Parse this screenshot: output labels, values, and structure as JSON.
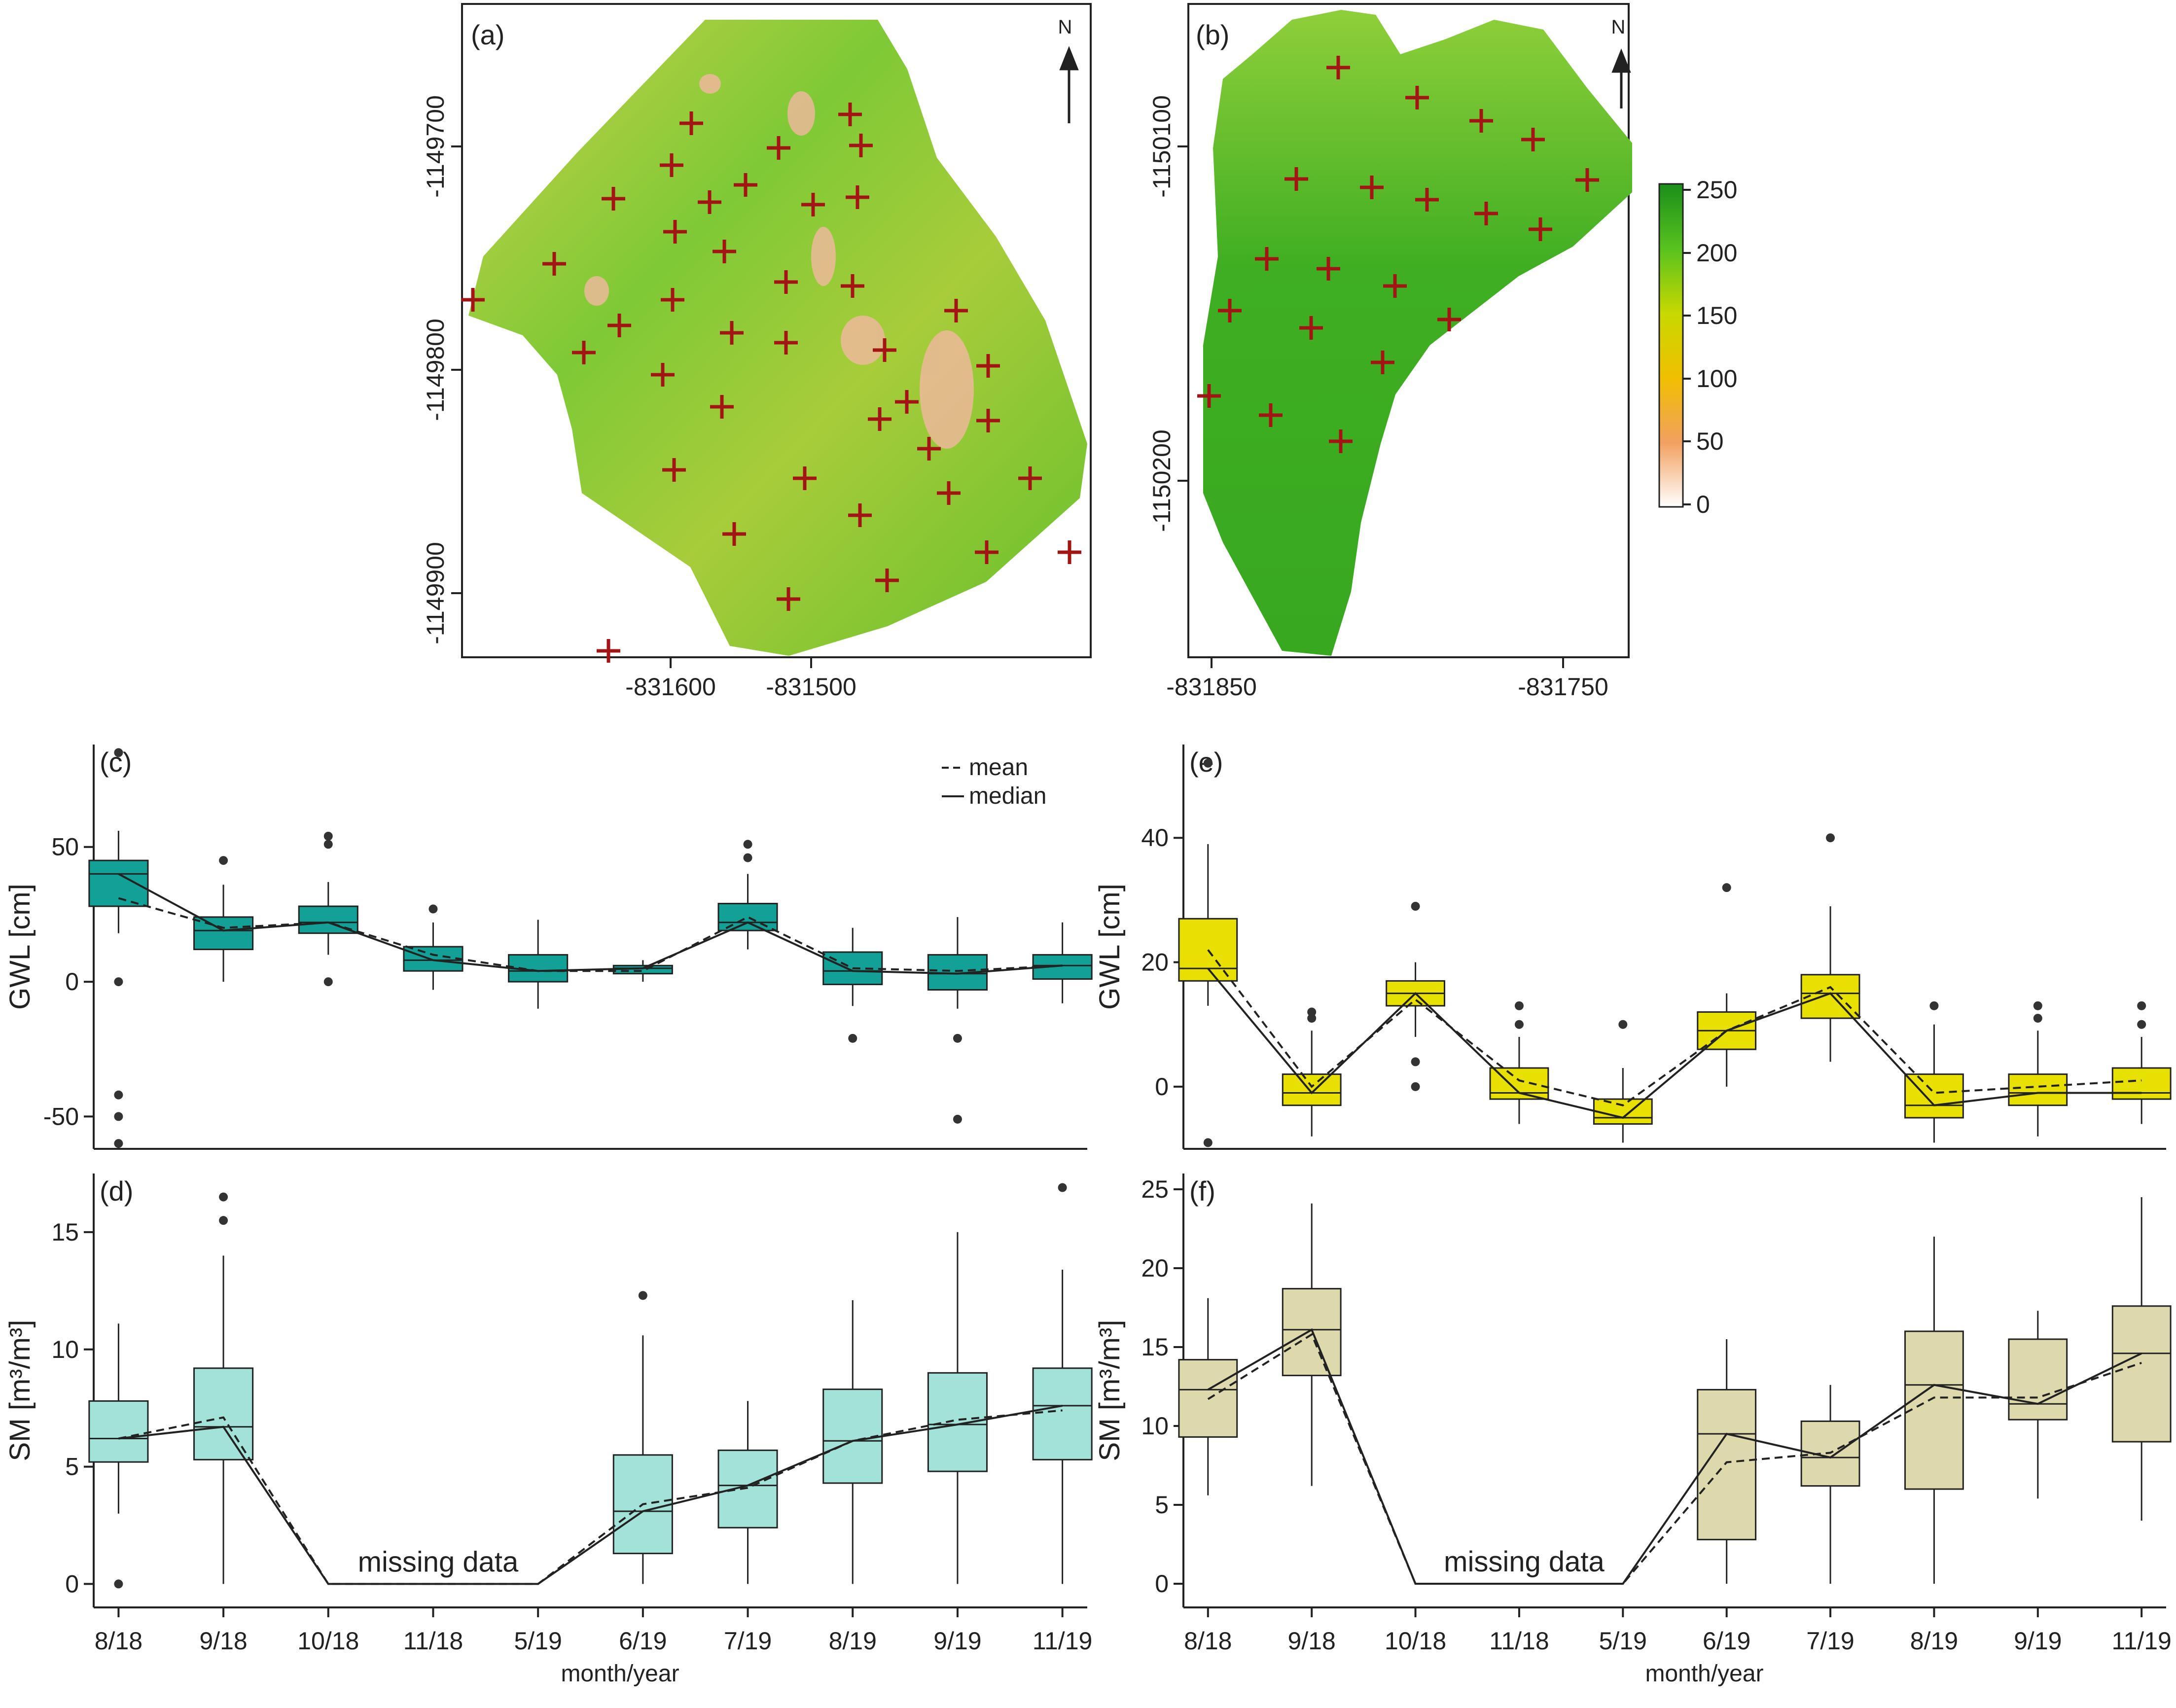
{
  "chart_data": [
    {
      "panel": "(a)",
      "type": "raster-map",
      "north_label": "N",
      "x_ticks": [
        "-831600",
        "-831500"
      ],
      "y_ticks": [
        "-1149700",
        "-1149800",
        "-1149900"
      ],
      "markers": "sampling points (+)"
    },
    {
      "panel": "(b)",
      "type": "raster-map",
      "north_label": "N",
      "x_ticks": [
        "-831850",
        "-831750"
      ],
      "y_ticks": [
        "-1150100",
        "-1150200"
      ],
      "colorbar": {
        "ticks": [
          "250",
          "200",
          "150",
          "100",
          "50",
          "0"
        ],
        "colors": [
          "#1a8f1a",
          "#58c21f",
          "#c8d800",
          "#f0c000",
          "#f2a060",
          "#ffffff"
        ]
      }
    },
    {
      "panel": "(c)",
      "type": "box",
      "ylabel": "GWL [cm]",
      "ylim": [
        -62,
        88
      ],
      "y_ticks": [
        -50,
        0,
        50
      ],
      "color": "#13a096",
      "legend": {
        "mean": "mean",
        "median": "median"
      },
      "categories": [
        "8/18",
        "9/18",
        "10/18",
        "11/18",
        "5/19",
        "6/19",
        "7/19",
        "8/19",
        "9/19",
        "11/19"
      ],
      "boxes": [
        {
          "q1": 28,
          "median": 40,
          "q3": 45,
          "lo": 18,
          "hi": 56,
          "mean": 31,
          "outliers": [
            85,
            0,
            -42,
            -50,
            -60
          ]
        },
        {
          "q1": 12,
          "median": 19,
          "q3": 24,
          "lo": 0,
          "hi": 36,
          "mean": 20,
          "outliers": [
            45
          ]
        },
        {
          "q1": 18,
          "median": 22,
          "q3": 28,
          "lo": 10,
          "hi": 37,
          "mean": 22,
          "outliers": [
            51,
            54,
            0
          ]
        },
        {
          "q1": 4,
          "median": 8,
          "q3": 13,
          "lo": -3,
          "hi": 22,
          "mean": 10,
          "outliers": [
            27
          ]
        },
        {
          "q1": 0,
          "median": 4,
          "q3": 10,
          "lo": -10,
          "hi": 23,
          "mean": 4,
          "outliers": []
        },
        {
          "q1": 3,
          "median": 5,
          "q3": 6,
          "lo": 0,
          "hi": 8,
          "mean": 4,
          "outliers": []
        },
        {
          "q1": 19,
          "median": 22,
          "q3": 29,
          "lo": 12,
          "hi": 40,
          "mean": 24,
          "outliers": [
            46,
            51
          ]
        },
        {
          "q1": -1,
          "median": 4,
          "q3": 11,
          "lo": -9,
          "hi": 20,
          "mean": 5,
          "outliers": [
            -21
          ]
        },
        {
          "q1": -3,
          "median": 3,
          "q3": 10,
          "lo": -10,
          "hi": 24,
          "mean": 4,
          "outliers": [
            -21,
            -51
          ]
        },
        {
          "q1": 1,
          "median": 6,
          "q3": 10,
          "lo": -8,
          "hi": 22,
          "mean": 6,
          "outliers": []
        }
      ]
    },
    {
      "panel": "(d)",
      "type": "box",
      "ylabel": "SM [m³/m³]",
      "ylim": [
        -1,
        17.5
      ],
      "y_ticks": [
        0,
        5,
        10,
        15
      ],
      "color": "#a2e2d8",
      "annotation": "missing data",
      "xlabel": "month/year",
      "categories": [
        "8/18",
        "9/18",
        "10/18",
        "11/18",
        "5/19",
        "6/19",
        "7/19",
        "8/19",
        "9/19",
        "11/19"
      ],
      "boxes": [
        {
          "q1": 5.2,
          "median": 6.2,
          "q3": 7.8,
          "lo": 3.0,
          "hi": 11.1,
          "mean": 6.2,
          "outliers": [
            0
          ]
        },
        {
          "q1": 5.3,
          "median": 6.7,
          "q3": 9.2,
          "lo": 0,
          "hi": 14.0,
          "mean": 7.1,
          "outliers": [
            15.5,
            16.5
          ]
        },
        null,
        null,
        null,
        {
          "q1": 1.3,
          "median": 3.1,
          "q3": 5.5,
          "lo": 0,
          "hi": 10.6,
          "mean": 3.4,
          "outliers": [
            12.3
          ]
        },
        {
          "q1": 2.4,
          "median": 4.2,
          "q3": 5.7,
          "lo": 0,
          "hi": 7.8,
          "mean": 4.1,
          "outliers": []
        },
        {
          "q1": 4.3,
          "median": 6.1,
          "q3": 8.3,
          "lo": 0,
          "hi": 12.1,
          "mean": 6.1,
          "outliers": []
        },
        {
          "q1": 4.8,
          "median": 6.8,
          "q3": 9.0,
          "lo": 0,
          "hi": 15.0,
          "mean": 7.0,
          "outliers": []
        },
        {
          "q1": 5.3,
          "median": 7.6,
          "q3": 9.2,
          "lo": 0,
          "hi": 13.4,
          "mean": 7.4,
          "outliers": [
            16.9
          ]
        }
      ],
      "median_line": [
        6.2,
        6.7,
        0,
        0,
        0,
        3.1,
        4.2,
        6.1,
        6.8,
        7.6
      ],
      "mean_line": [
        6.2,
        7.1,
        0,
        0,
        0,
        3.4,
        4.1,
        6.1,
        7.0,
        7.4
      ]
    },
    {
      "panel": "(e)",
      "type": "box",
      "ylabel": "GWL [cm]",
      "ylim": [
        -10,
        55
      ],
      "y_ticks": [
        0,
        20,
        40
      ],
      "color": "#e8e000",
      "categories": [
        "8/18",
        "9/18",
        "10/18",
        "11/18",
        "5/19",
        "6/19",
        "7/19",
        "8/19",
        "9/19",
        "11/19"
      ],
      "boxes": [
        {
          "q1": 17,
          "median": 19,
          "q3": 27,
          "lo": 13,
          "hi": 39,
          "mean": 22,
          "outliers": [
            52,
            -9
          ]
        },
        {
          "q1": -3,
          "median": -1,
          "q3": 2,
          "lo": -8,
          "hi": 9,
          "mean": 0,
          "outliers": [
            12,
            11
          ]
        },
        {
          "q1": 13,
          "median": 15,
          "q3": 17,
          "lo": 8,
          "hi": 20,
          "mean": 14,
          "outliers": [
            29,
            4,
            0
          ]
        },
        {
          "q1": -2,
          "median": -1,
          "q3": 3,
          "lo": -6,
          "hi": 8,
          "mean": 1,
          "outliers": [
            13,
            10
          ]
        },
        {
          "q1": -6,
          "median": -5,
          "q3": -2,
          "lo": -9,
          "hi": 3,
          "mean": -3,
          "outliers": [
            10
          ]
        },
        {
          "q1": 6,
          "median": 9,
          "q3": 12,
          "lo": 0,
          "hi": 15,
          "mean": 9,
          "outliers": [
            32
          ]
        },
        {
          "q1": 11,
          "median": 15,
          "q3": 18,
          "lo": 4,
          "hi": 29,
          "mean": 16,
          "outliers": [
            40
          ]
        },
        {
          "q1": -5,
          "median": -3,
          "q3": 2,
          "lo": -9,
          "hi": 10,
          "mean": -1,
          "outliers": [
            13
          ]
        },
        {
          "q1": -3,
          "median": -1,
          "q3": 2,
          "lo": -8,
          "hi": 9,
          "mean": 0,
          "outliers": [
            13,
            11
          ]
        },
        {
          "q1": -2,
          "median": -1,
          "q3": 3,
          "lo": -6,
          "hi": 8,
          "mean": 1,
          "outliers": [
            13,
            10
          ]
        }
      ]
    },
    {
      "panel": "(f)",
      "type": "box",
      "ylabel": "SM [m³/m³]",
      "ylim": [
        -1.5,
        26
      ],
      "y_ticks": [
        0,
        5,
        10,
        15,
        20,
        25
      ],
      "color": "#ddd9ac",
      "annotation": "missing data",
      "xlabel": "month/year",
      "categories": [
        "8/18",
        "9/18",
        "10/18",
        "11/18",
        "5/19",
        "6/19",
        "7/19",
        "8/19",
        "9/19",
        "11/19"
      ],
      "boxes": [
        {
          "q1": 9.3,
          "median": 12.3,
          "q3": 14.2,
          "lo": 5.6,
          "hi": 18.1,
          "mean": 11.7,
          "outliers": []
        },
        {
          "q1": 13.2,
          "median": 16.1,
          "q3": 18.7,
          "lo": 6.2,
          "hi": 24.1,
          "mean": 15.8,
          "outliers": []
        },
        null,
        null,
        null,
        {
          "q1": 2.8,
          "median": 9.5,
          "q3": 12.3,
          "lo": 0,
          "hi": 15.5,
          "mean": 7.7,
          "outliers": []
        },
        {
          "q1": 6.2,
          "median": 8.0,
          "q3": 10.3,
          "lo": 0,
          "hi": 12.6,
          "mean": 8.3,
          "outliers": []
        },
        {
          "q1": 6.0,
          "median": 12.6,
          "q3": 16.0,
          "lo": 0,
          "hi": 22.0,
          "mean": 11.8,
          "outliers": []
        },
        {
          "q1": 10.4,
          "median": 11.4,
          "q3": 15.5,
          "lo": 5.4,
          "hi": 17.3,
          "mean": 11.8,
          "outliers": []
        },
        {
          "q1": 9.0,
          "median": 14.6,
          "q3": 17.6,
          "lo": 4.0,
          "hi": 24.5,
          "mean": 14.0,
          "outliers": []
        }
      ],
      "median_line": [
        12.3,
        16.1,
        0,
        0,
        0,
        9.5,
        8.0,
        12.6,
        11.4,
        14.6
      ],
      "mean_line": [
        11.7,
        15.8,
        0,
        0,
        0,
        7.7,
        8.3,
        11.8,
        11.8,
        14.0
      ]
    }
  ]
}
